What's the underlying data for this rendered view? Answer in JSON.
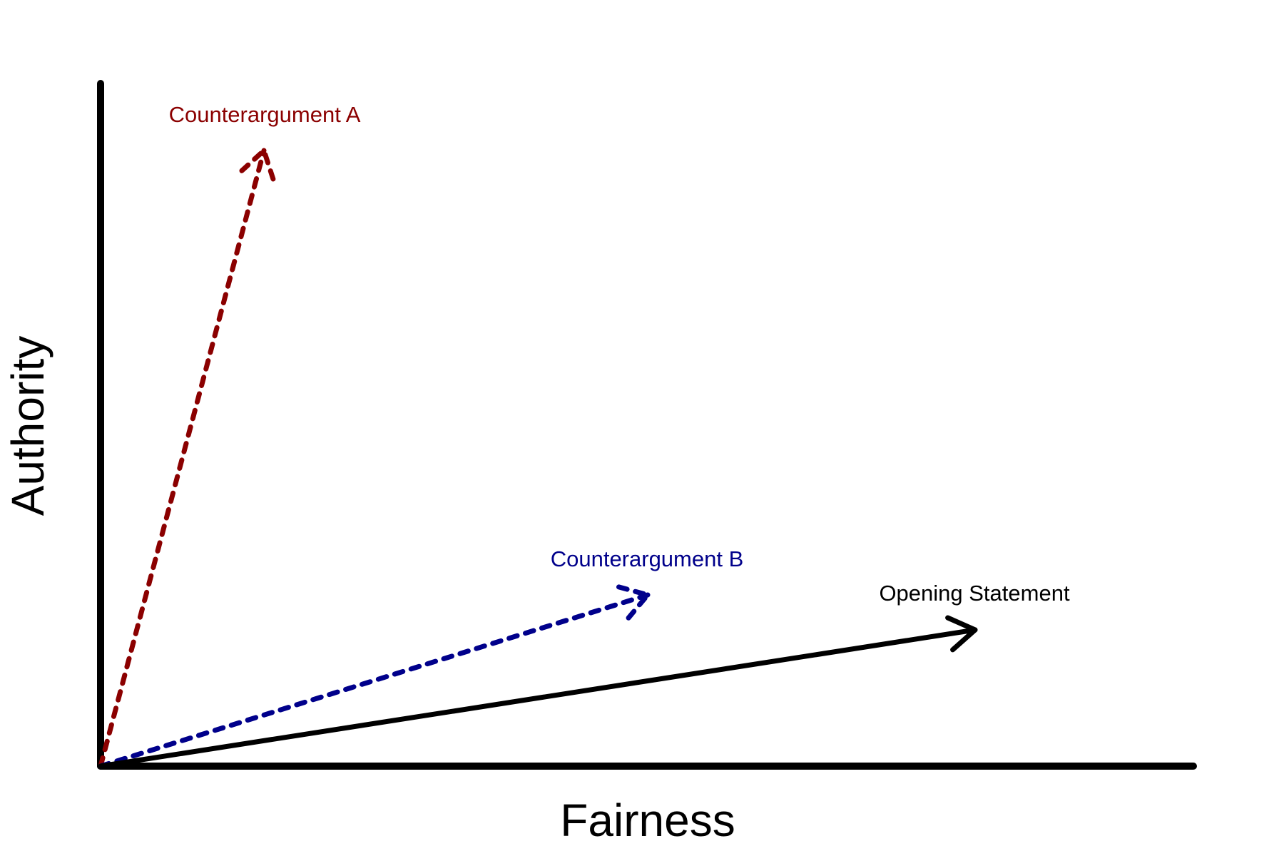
{
  "axes": {
    "x_label": "Fairness",
    "y_label": "Authority"
  },
  "vectors": [
    {
      "label": "Counterargument A"
    },
    {
      "label": "Counterargument B"
    },
    {
      "label": "Opening Statement"
    }
  ]
}
